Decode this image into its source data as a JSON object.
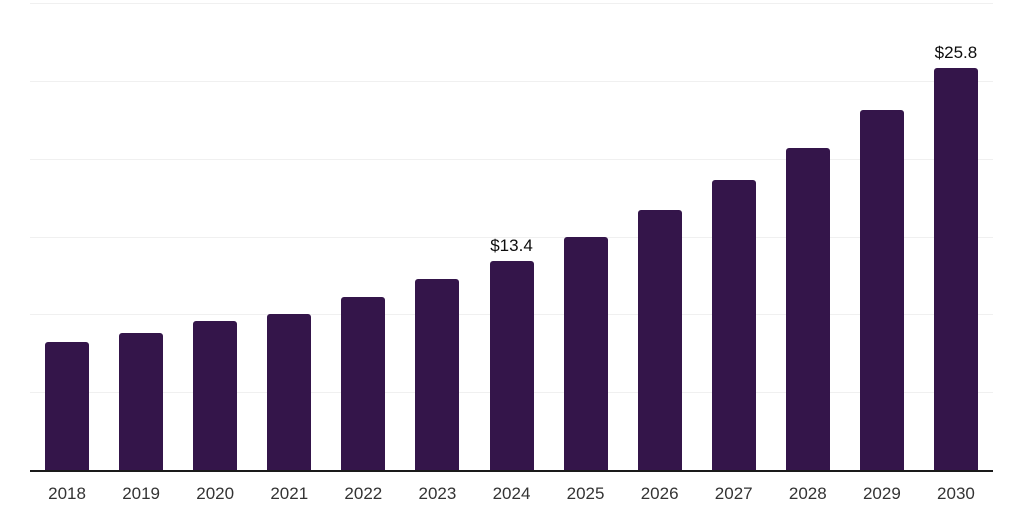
{
  "chart_data": {
    "type": "bar",
    "title": "",
    "xlabel": "",
    "ylabel": "",
    "categories": [
      "2018",
      "2019",
      "2020",
      "2021",
      "2022",
      "2023",
      "2024",
      "2025",
      "2026",
      "2027",
      "2028",
      "2029",
      "2030"
    ],
    "values": [
      8.2,
      8.8,
      9.6,
      10.0,
      11.1,
      12.3,
      13.4,
      15.0,
      16.7,
      18.6,
      20.7,
      23.1,
      25.8
    ],
    "data_labels": [
      {
        "category": "2024",
        "text": "$13.4"
      },
      {
        "category": "2030",
        "text": "$25.8"
      }
    ],
    "ylim": [
      0,
      30
    ],
    "grid_interval": 5,
    "grid": "horizontal-only",
    "legend": "none",
    "colors": {
      "bar": "#34154A",
      "gridline": "#f0f0f0",
      "axis_line": "#1a1a1a",
      "tick_label": "#333333",
      "data_label": "#0d0d0d",
      "background": "#ffffff"
    }
  }
}
